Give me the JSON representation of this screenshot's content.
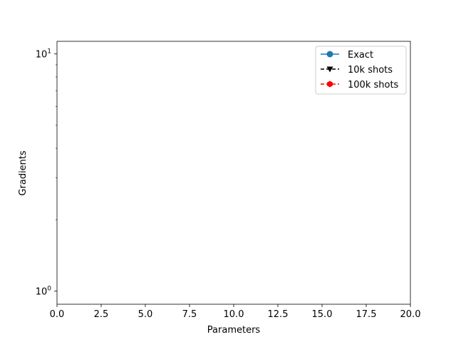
{
  "chart_data": {
    "type": "line",
    "title": "",
    "xlabel": "Parameters",
    "ylabel": "Gradients",
    "xlim": [
      0,
      20
    ],
    "ylim": [
      0.88,
      11.3
    ],
    "yscale": "log",
    "grid": false,
    "legend_position": "top-right",
    "x_ticks": [
      0,
      2.5,
      5,
      7.5,
      10,
      12.5,
      15,
      17.5,
      20
    ],
    "x_tick_labels": [
      "0.0",
      "2.5",
      "5.0",
      "7.5",
      "10.0",
      "12.5",
      "15.0",
      "17.5",
      "20.0"
    ],
    "y_major_ticks": [
      1,
      10
    ],
    "y_tick_labels": [
      {
        "base": "10",
        "exp": "0"
      },
      {
        "base": "10",
        "exp": "1"
      }
    ],
    "y_minor_ticks": [
      2,
      3,
      4,
      5,
      6,
      7,
      8,
      9
    ],
    "series": [
      {
        "name": "Exact",
        "color": "#1f77b4",
        "linestyle": "solid",
        "marker": "circle",
        "x": [],
        "y": []
      },
      {
        "name": "10k shots",
        "color": "#000000",
        "linestyle": "dashed",
        "marker": "triangle-down",
        "x": [],
        "y": []
      },
      {
        "name": "100k shots",
        "color": "#ff0000",
        "linestyle": "dashed",
        "marker": "hexagon",
        "x": [],
        "y": []
      }
    ]
  }
}
